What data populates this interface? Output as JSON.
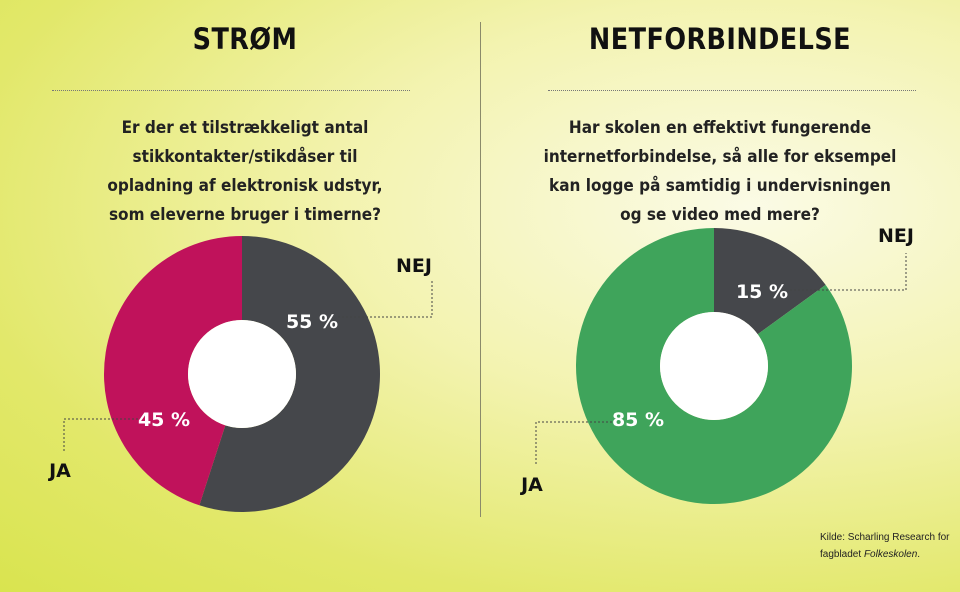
{
  "chart_data": [
    {
      "type": "pie",
      "title": "STRØM",
      "question": "Er der et tilstrækkeligt antal stikkontakter/stikdåser til opladning af elektronisk udstyr, som eleverne bruger i timerne?",
      "slices": [
        {
          "label": "NEJ",
          "value": 55,
          "display": "55 %",
          "color": "#45474b"
        },
        {
          "label": "JA",
          "value": 45,
          "display": "45 %",
          "color": "#c0125b"
        }
      ]
    },
    {
      "type": "pie",
      "title": "NETFORBINDELSE",
      "question": "Har skolen en effektivt fungerende internetforbindelse, så alle for eksempel kan logge på samtidig i undervisningen og se video med mere?",
      "slices": [
        {
          "label": "NEJ",
          "value": 15,
          "display": "15 %",
          "color": "#45474b"
        },
        {
          "label": "JA",
          "value": 85,
          "display": "85 %",
          "color": "#3fa45b"
        }
      ]
    }
  ],
  "source": {
    "prefix": "Kilde: Scharling Research for",
    "line2_prefix": "fagbladet ",
    "publication": "Folkeskolen",
    "line2_suffix": "."
  }
}
